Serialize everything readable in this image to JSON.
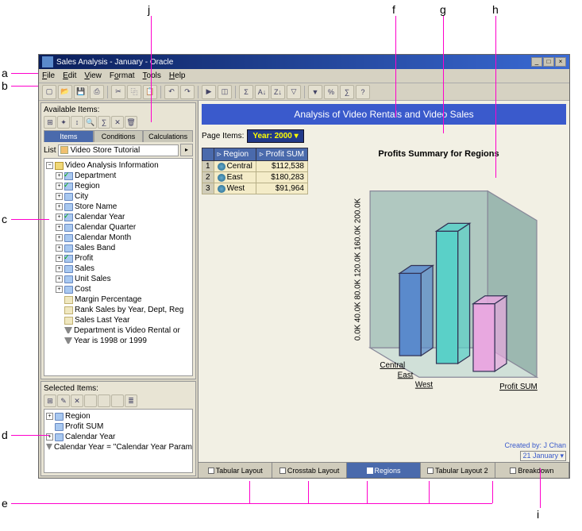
{
  "window": {
    "title": "Sales Analysis - January - Oracle"
  },
  "menu": [
    "File",
    "Edit",
    "View",
    "Format",
    "Tools",
    "Help"
  ],
  "toolbar_icons": [
    "new",
    "open",
    "save",
    "print",
    "|",
    "cut",
    "copy",
    "paste",
    "|",
    "undo",
    "redo",
    "|",
    "run",
    "chart",
    "|",
    "sigma",
    "sort-asc",
    "sort-desc",
    "filter",
    "|",
    "funnel",
    "percent",
    "calc",
    "help"
  ],
  "left": {
    "available_label": "Available Items:",
    "mini_tb": [
      "tree",
      "wand",
      "sort",
      "find",
      "calc",
      "del",
      "trash"
    ],
    "tabs": [
      "Items",
      "Conditions",
      "Calculations"
    ],
    "active_tab": 0,
    "list_label": "List",
    "list_value": "Video Store Tutorial",
    "tree_root": "Video Analysis Information",
    "tree_items": [
      {
        "label": "Department",
        "icon": "dimck",
        "toggle": "+"
      },
      {
        "label": "Region",
        "icon": "dimck",
        "toggle": "+"
      },
      {
        "label": "City",
        "icon": "dim",
        "toggle": "+"
      },
      {
        "label": "Store Name",
        "icon": "dim",
        "toggle": "+"
      },
      {
        "label": "Calendar Year",
        "icon": "dimck",
        "toggle": "+"
      },
      {
        "label": "Calendar Quarter",
        "icon": "dim",
        "toggle": "+"
      },
      {
        "label": "Calendar Month",
        "icon": "dim",
        "toggle": "+"
      },
      {
        "label": "Sales Band",
        "icon": "dim",
        "toggle": "+"
      },
      {
        "label": "Profit",
        "icon": "dimck",
        "toggle": "+"
      },
      {
        "label": "Sales",
        "icon": "dim",
        "toggle": "+"
      },
      {
        "label": "Unit Sales",
        "icon": "dim",
        "toggle": "+"
      },
      {
        "label": "Cost",
        "icon": "dim",
        "toggle": "+"
      },
      {
        "label": "Margin Percentage",
        "icon": "calc",
        "toggle": ""
      },
      {
        "label": "Rank Sales by Year, Dept, Reg",
        "icon": "calc",
        "toggle": ""
      },
      {
        "label": "Sales Last Year",
        "icon": "calc",
        "toggle": ""
      },
      {
        "label": "Department is Video Rental or",
        "icon": "filt",
        "toggle": ""
      },
      {
        "label": "Year is 1998 or 1999",
        "icon": "filt",
        "toggle": ""
      }
    ],
    "selected_label": "Selected Items:",
    "selected_mini_tb": [
      "tree",
      "edit",
      "del",
      "",
      "",
      "",
      "list"
    ],
    "selected_items": [
      {
        "label": "Region",
        "icon": "dim",
        "toggle": "+"
      },
      {
        "label": "Profit SUM",
        "icon": "dim",
        "toggle": ""
      },
      {
        "label": "Calendar Year",
        "icon": "dim",
        "toggle": "+"
      },
      {
        "label": "Calendar Year = \"Calendar Year Parame",
        "icon": "filt",
        "toggle": ""
      }
    ]
  },
  "report": {
    "title": "Analysis of Video Rentals and Video Sales",
    "page_items_label": "Page Items:",
    "year_label": "Year:  2000",
    "table": {
      "columns": [
        "Region",
        "Profit SUM"
      ],
      "rows": [
        {
          "idx": 1,
          "region": "Central",
          "profit": "$112,538"
        },
        {
          "idx": 2,
          "region": "East",
          "profit": "$180,283"
        },
        {
          "idx": 3,
          "region": "West",
          "profit": "$91,964"
        }
      ]
    },
    "chart": {
      "title": "Profits Summary for Regions",
      "y_ticks": [
        "0.0K",
        "40.0K",
        "80.0K",
        "120.0K",
        "160.0K",
        "200.0K"
      ],
      "x_ticks": [
        "Central",
        "East",
        "West"
      ],
      "z_label": "Profit SUM",
      "bars": [
        {
          "h": 0.56,
          "color": "#5a8acc"
        },
        {
          "h": 0.9,
          "color": "#5ad0c8"
        },
        {
          "h": 0.46,
          "color": "#e8a8e0"
        }
      ],
      "wall_color": "#b0c8c0",
      "floor_color": "#d0e0d8"
    },
    "footer_tabs": [
      "Tabular Layout",
      "Crosstab Layout",
      "Regions",
      "Tabular Layout 2",
      "Breakdown"
    ],
    "active_footer_tab": 2,
    "created_by": "Created by: J Chan",
    "date": "21 January"
  },
  "callouts": {
    "a": "a",
    "b": "b",
    "c": "c",
    "d": "d",
    "e": "e",
    "f": "f",
    "g": "g",
    "h": "h",
    "i": "i",
    "j": "j"
  }
}
